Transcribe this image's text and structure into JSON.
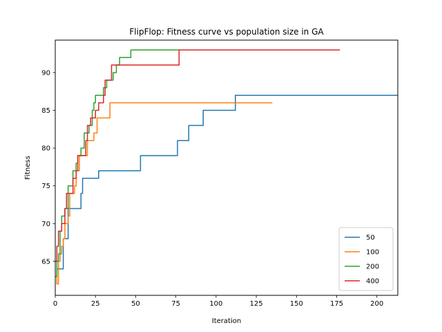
{
  "chart_data": {
    "type": "line",
    "title": "FlipFlop: Fitness curve vs population size in GA",
    "xlabel": "Iteration",
    "ylabel": "Fitness",
    "xlim": [
      0,
      213
    ],
    "ylim": [
      60.5,
      94.3
    ],
    "xticks": [
      0,
      25,
      50,
      75,
      100,
      125,
      150,
      175,
      200
    ],
    "yticks": [
      65,
      70,
      75,
      80,
      85,
      90
    ],
    "grid": false,
    "legend_position": "lower-right",
    "series": [
      {
        "name": "50",
        "color": "#1f77b4",
        "points": [
          [
            0,
            63
          ],
          [
            1,
            63
          ],
          [
            1,
            64
          ],
          [
            5,
            64
          ],
          [
            5,
            68
          ],
          [
            8,
            68
          ],
          [
            8,
            72
          ],
          [
            16,
            72
          ],
          [
            16,
            74
          ],
          [
            17,
            74
          ],
          [
            17,
            76
          ],
          [
            24,
            76
          ],
          [
            24,
            76
          ],
          [
            27,
            76
          ],
          [
            27,
            77
          ],
          [
            53,
            77
          ],
          [
            53,
            79
          ],
          [
            76,
            79
          ],
          [
            76,
            81
          ],
          [
            83,
            81
          ],
          [
            83,
            83
          ],
          [
            92,
            83
          ],
          [
            92,
            85
          ],
          [
            112,
            85
          ],
          [
            112,
            87
          ],
          [
            213,
            87
          ]
        ]
      },
      {
        "name": "100",
        "color": "#ff7f0e",
        "points": [
          [
            0,
            63
          ],
          [
            1,
            63
          ],
          [
            1,
            62
          ],
          [
            2,
            62
          ],
          [
            2,
            65
          ],
          [
            3,
            65
          ],
          [
            3,
            66
          ],
          [
            4,
            66
          ],
          [
            4,
            67
          ],
          [
            5,
            67
          ],
          [
            5,
            68
          ],
          [
            6,
            68
          ],
          [
            6,
            70
          ],
          [
            8,
            70
          ],
          [
            8,
            71
          ],
          [
            9,
            71
          ],
          [
            9,
            74
          ],
          [
            12,
            74
          ],
          [
            12,
            75
          ],
          [
            13,
            75
          ],
          [
            13,
            77
          ],
          [
            15,
            77
          ],
          [
            15,
            79
          ],
          [
            20,
            79
          ],
          [
            20,
            81
          ],
          [
            24,
            81
          ],
          [
            24,
            82
          ],
          [
            26,
            82
          ],
          [
            26,
            84
          ],
          [
            34,
            84
          ],
          [
            34,
            86
          ],
          [
            135,
            86
          ]
        ]
      },
      {
        "name": "200",
        "color": "#2ca02c",
        "points": [
          [
            0,
            63
          ],
          [
            1,
            63
          ],
          [
            1,
            65
          ],
          [
            2,
            65
          ],
          [
            2,
            66
          ],
          [
            3,
            66
          ],
          [
            3,
            69
          ],
          [
            4,
            69
          ],
          [
            4,
            71
          ],
          [
            6,
            71
          ],
          [
            6,
            72
          ],
          [
            8,
            72
          ],
          [
            8,
            75
          ],
          [
            11,
            75
          ],
          [
            11,
            77
          ],
          [
            13,
            77
          ],
          [
            13,
            78
          ],
          [
            14,
            78
          ],
          [
            14,
            79
          ],
          [
            16,
            79
          ],
          [
            16,
            80
          ],
          [
            18,
            80
          ],
          [
            18,
            82
          ],
          [
            21,
            82
          ],
          [
            21,
            83
          ],
          [
            23,
            83
          ],
          [
            23,
            85
          ],
          [
            24,
            85
          ],
          [
            24,
            86
          ],
          [
            25,
            86
          ],
          [
            25,
            87
          ],
          [
            30,
            87
          ],
          [
            30,
            88
          ],
          [
            32,
            88
          ],
          [
            32,
            89
          ],
          [
            36,
            89
          ],
          [
            36,
            90
          ],
          [
            38,
            90
          ],
          [
            38,
            91
          ],
          [
            40,
            91
          ],
          [
            40,
            92
          ],
          [
            47,
            92
          ],
          [
            47,
            93
          ],
          [
            148,
            93
          ]
        ]
      },
      {
        "name": "400",
        "color": "#d62728",
        "points": [
          [
            0,
            65
          ],
          [
            1,
            65
          ],
          [
            1,
            67
          ],
          [
            2,
            67
          ],
          [
            2,
            69
          ],
          [
            4,
            69
          ],
          [
            4,
            70
          ],
          [
            6,
            70
          ],
          [
            6,
            72
          ],
          [
            7,
            72
          ],
          [
            7,
            74
          ],
          [
            11,
            74
          ],
          [
            11,
            76
          ],
          [
            13,
            76
          ],
          [
            13,
            77
          ],
          [
            14,
            77
          ],
          [
            14,
            79
          ],
          [
            19,
            79
          ],
          [
            19,
            81
          ],
          [
            20,
            81
          ],
          [
            20,
            83
          ],
          [
            22,
            83
          ],
          [
            22,
            84
          ],
          [
            25,
            84
          ],
          [
            25,
            85
          ],
          [
            27,
            85
          ],
          [
            27,
            86
          ],
          [
            30,
            86
          ],
          [
            30,
            87
          ],
          [
            31,
            87
          ],
          [
            31,
            89
          ],
          [
            35,
            89
          ],
          [
            35,
            91
          ],
          [
            77,
            91
          ],
          [
            77,
            93
          ],
          [
            177,
            93
          ]
        ]
      }
    ]
  }
}
